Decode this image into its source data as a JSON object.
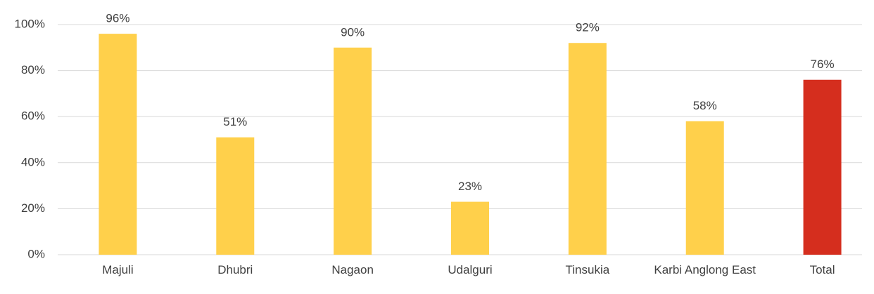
{
  "chart_data": {
    "type": "bar",
    "categories": [
      "Majuli",
      "Dhubri",
      "Nagaon",
      "Udalguri",
      "Tinsukia",
      "Karbi Anglong East",
      "Total"
    ],
    "values": [
      96,
      51,
      90,
      23,
      92,
      58,
      76
    ],
    "value_labels": [
      "96%",
      "51%",
      "90%",
      "23%",
      "92%",
      "58%",
      "76%"
    ],
    "colors": [
      "#ffd04b",
      "#ffd04b",
      "#ffd04b",
      "#ffd04b",
      "#ffd04b",
      "#ffd04b",
      "#d52e1e"
    ],
    "ylim": [
      0,
      100
    ],
    "yticks": [
      {
        "value": 0,
        "label": "0%"
      },
      {
        "value": 20,
        "label": "20%"
      },
      {
        "value": 40,
        "label": "40%"
      },
      {
        "value": 60,
        "label": "60%"
      },
      {
        "value": 80,
        "label": "80%"
      },
      {
        "value": 100,
        "label": "100%"
      }
    ],
    "grid": true
  }
}
